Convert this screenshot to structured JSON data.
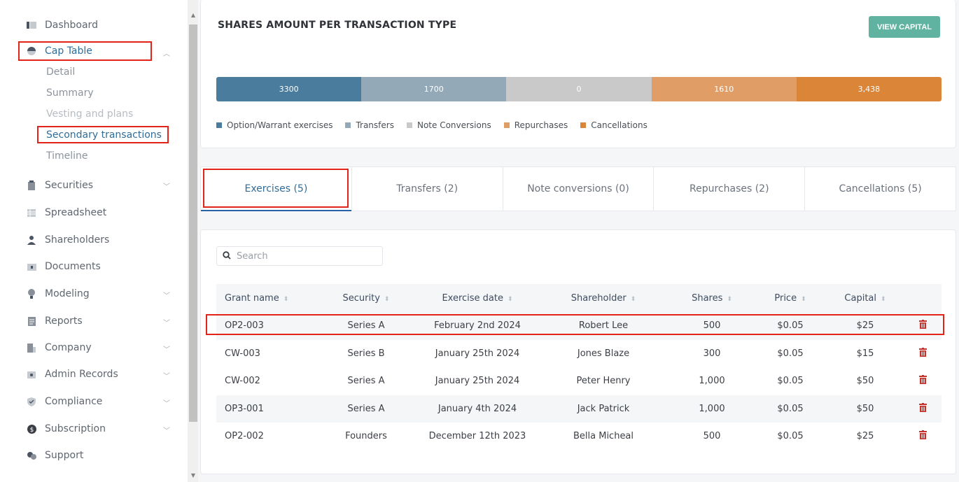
{
  "sidebar": {
    "items": [
      {
        "label": "Dashboard",
        "icon": "dashboard-icon"
      },
      {
        "label": "Cap Table",
        "icon": "pie-chart-icon"
      },
      {
        "label": "Securities",
        "icon": "clipboard-icon"
      },
      {
        "label": "Spreadsheet",
        "icon": "spreadsheet-icon"
      },
      {
        "label": "Shareholders",
        "icon": "person-icon"
      },
      {
        "label": "Documents",
        "icon": "folder-icon"
      },
      {
        "label": "Modeling",
        "icon": "lightbulb-icon"
      },
      {
        "label": "Reports",
        "icon": "report-icon"
      },
      {
        "label": "Company",
        "icon": "building-icon"
      },
      {
        "label": "Admin Records",
        "icon": "admin-icon"
      },
      {
        "label": "Compliance",
        "icon": "shield-icon"
      },
      {
        "label": "Subscription",
        "icon": "dollar-icon"
      },
      {
        "label": "Support",
        "icon": "support-icon"
      }
    ],
    "cap_table_sub": [
      "Detail",
      "Summary",
      "Vesting and plans",
      "Secondary transactions",
      "Timeline"
    ]
  },
  "summary": {
    "title": "SHARES AMOUNT PER TRANSACTION TYPE",
    "view_capital_label": "VIEW CAPITAL",
    "bars": [
      {
        "label": "3300",
        "color": "#4a7c9d"
      },
      {
        "label": "1700",
        "color": "#93a9b8"
      },
      {
        "label": "0",
        "color": "#c9c9c9"
      },
      {
        "label": "1610",
        "color": "#e09e66"
      },
      {
        "label": "3,438",
        "color": "#db8539"
      }
    ],
    "legend": [
      "Option/Warrant exercises",
      "Transfers",
      "Note Conversions",
      "Repurchases",
      "Cancellations"
    ]
  },
  "tabs": [
    "Exercises (5)",
    "Transfers (2)",
    "Note conversions (0)",
    "Repurchases (2)",
    "Cancellations (5)"
  ],
  "table": {
    "search_placeholder": "Search",
    "columns": [
      "Grant name",
      "Security",
      "Exercise date",
      "Shareholder",
      "Shares",
      "Price",
      "Capital"
    ],
    "rows": [
      [
        "OP2-003",
        "Series A",
        "February 2nd 2024",
        "Robert Lee",
        "500",
        "$0.05",
        "$25"
      ],
      [
        "CW-003",
        "Series B",
        "January 25th 2024",
        "Jones Blaze",
        "300",
        "$0.05",
        "$15"
      ],
      [
        "CW-002",
        "Series A",
        "January 25th 2024",
        "Peter Henry",
        "1,000",
        "$0.05",
        "$50"
      ],
      [
        "OP3-001",
        "Series A",
        "January 4th 2024",
        "Jack Patrick",
        "1,000",
        "$0.05",
        "$50"
      ],
      [
        "OP2-002",
        "Founders",
        "December 12th 2023",
        "Bella Micheal",
        "500",
        "$0.05",
        "$25"
      ]
    ]
  },
  "colors": {
    "accent": "#2f6d99",
    "highlight": "#e2231a",
    "delete": "#c9302c",
    "button": "#5fb3a0"
  }
}
